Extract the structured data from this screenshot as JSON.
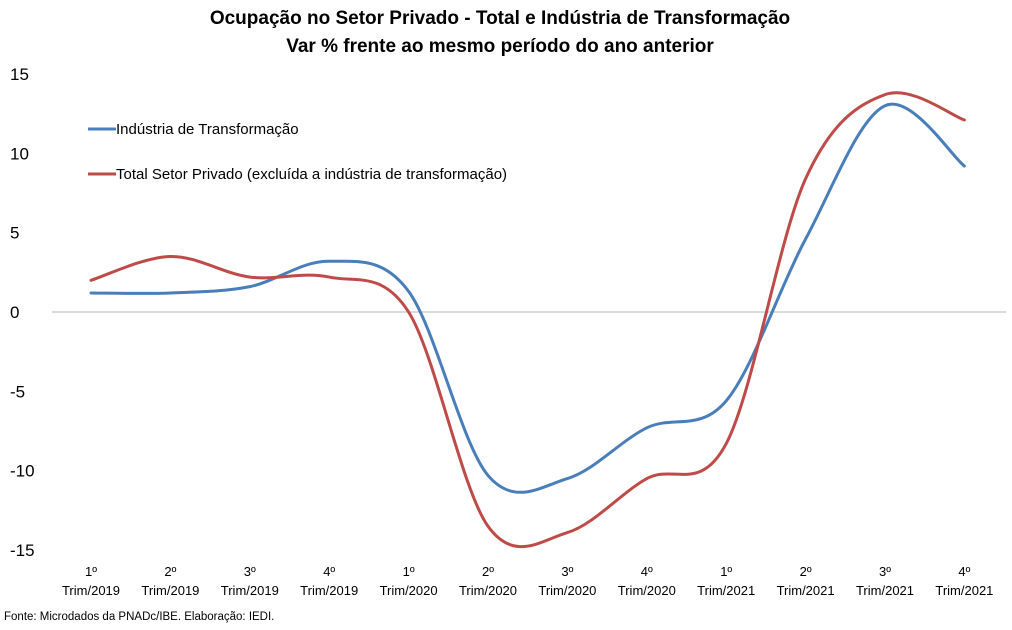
{
  "chart_data": {
    "type": "line",
    "title": "Ocupação no Setor Privado - Total e Indústria de Transformação",
    "subtitle": "Var % frente ao mesmo período do ano anterior",
    "categories": [
      [
        "1º",
        "Trim/2019"
      ],
      [
        "2º",
        "Trim/2019"
      ],
      [
        "3º",
        "Trim/2019"
      ],
      [
        "4º",
        "Trim/2019"
      ],
      [
        "1º",
        "Trim/2020"
      ],
      [
        "2º",
        "Trim/2020"
      ],
      [
        "3º",
        "Trim/2020"
      ],
      [
        "4º",
        "Trim/2020"
      ],
      [
        "1º",
        "Trim/2021"
      ],
      [
        "2º",
        "Trim/2021"
      ],
      [
        "3º",
        "Trim/2021"
      ],
      [
        "4º",
        "Trim/2021"
      ]
    ],
    "ylim": [
      -15,
      15
    ],
    "yticks": [
      "15",
      "10",
      "5",
      "0",
      "-5",
      "-10",
      "-15"
    ],
    "legend_position": "top-left",
    "series": [
      {
        "name": "Indústria de Transformação",
        "color": "#4a7ebb",
        "values": [
          1.2,
          1.2,
          1.6,
          3.2,
          1.3,
          -10.3,
          -10.5,
          -7.3,
          -5.6,
          4.6,
          13.0,
          9.2
        ]
      },
      {
        "name": "Total Setor Privado (excluída a indústria de transformação)",
        "color": "#be4b48",
        "values": [
          2.0,
          3.5,
          2.2,
          2.2,
          0.0,
          -13.5,
          -13.9,
          -10.5,
          -8.3,
          8.4,
          13.7,
          12.1
        ]
      }
    ]
  },
  "footer": {
    "source": "Fonte: Microdados da PNADc/IBE. Elaboração: IEDI."
  }
}
